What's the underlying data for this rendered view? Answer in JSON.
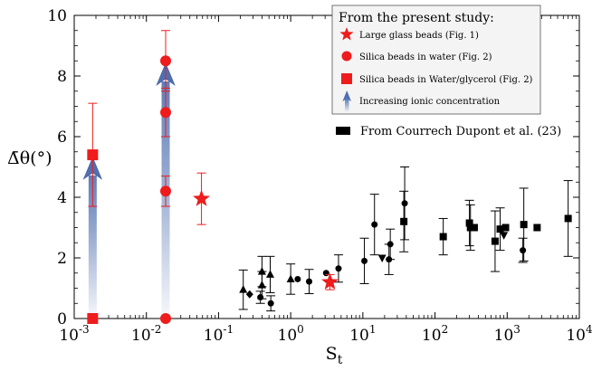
{
  "chart_data": {
    "type": "scatter",
    "xlabel": "S",
    "xlabel_sub": "t",
    "ylabel": "Δ̄θ(°)",
    "x_scale": "log",
    "xlim": [
      0.001,
      10000
    ],
    "ylim": [
      0,
      10
    ],
    "x_tick_labels": [
      {
        "base": "10",
        "exp": "-3"
      },
      {
        "base": "10",
        "exp": "-2"
      },
      {
        "base": "10",
        "exp": "-1"
      },
      {
        "base": "10",
        "exp": "0"
      },
      {
        "base": "10",
        "exp": "1"
      },
      {
        "base": "10",
        "exp": "2"
      },
      {
        "base": "10",
        "exp": "3"
      },
      {
        "base": "10",
        "exp": "4"
      }
    ],
    "y_ticks": [
      0,
      2,
      4,
      6,
      8,
      10
    ],
    "y_tick_labels": [
      "0",
      "2",
      "4",
      "6",
      "8",
      "10"
    ],
    "grid": false,
    "legend": {
      "placement": "top-right",
      "title": "From the present study:",
      "entries": [
        {
          "label": "Large glass beads (Fig. 1)",
          "marker": "star",
          "color": "#ee1c1c"
        },
        {
          "label": "Silica beads in water (Fig. 2)",
          "marker": "circle",
          "color": "#ee1c1c"
        },
        {
          "label": "Silica beads in Water/glycerol (Fig. 2)",
          "marker": "square",
          "color": "#ee1c1c"
        },
        {
          "label": "Increasing ionic concentration",
          "marker": "arrow",
          "color": "#4f6fb0"
        }
      ],
      "second_entry": {
        "label": "From Courrech Dupont et al. (23)",
        "marker": "square",
        "color": "#000000"
      }
    },
    "series": [
      {
        "name": "Large glass beads (Fig. 1)",
        "marker": "star",
        "color": "#ee1c1c",
        "points": [
          {
            "x": 0.058,
            "y": 3.95,
            "err": 0.85
          },
          {
            "x": 3.5,
            "y": 1.2,
            "err": 0.25
          }
        ]
      },
      {
        "name": "Silica beads in water (Fig. 2)",
        "marker": "circle",
        "color": "#ee1c1c",
        "points": [
          {
            "x": 0.0185,
            "y": 8.5,
            "err": 1.0
          },
          {
            "x": 0.0185,
            "y": 6.8,
            "err": 0.8
          },
          {
            "x": 0.0185,
            "y": 4.2,
            "err": 0.5
          },
          {
            "x": 0.0185,
            "y": 0,
            "err": 0
          }
        ]
      },
      {
        "name": "Silica beads in Water/glycerol (Fig. 2)",
        "marker": "square",
        "color": "#ee1c1c",
        "points": [
          {
            "x": 0.0018,
            "y": 5.4,
            "err": 1.7
          },
          {
            "x": 0.0018,
            "y": 0,
            "err": 0
          }
        ]
      },
      {
        "name": "Increasing ionic concentration",
        "marker": "arrow",
        "color": "#4f6fb0",
        "arrows": [
          {
            "x": 0.0018,
            "y_from": 0,
            "y_to": 4.9
          },
          {
            "x": 0.0185,
            "y_from": 0,
            "y_to": 8.0
          }
        ]
      },
      {
        "name": "From Courrech Dupont et al. (23)",
        "marker": "mixed",
        "color": "#000000",
        "points": [
          {
            "x": 0.22,
            "y": 0.95,
            "err": 0.65,
            "m": "tri"
          },
          {
            "x": 0.27,
            "y": 0.8,
            "err": 0,
            "m": "diamond"
          },
          {
            "x": 0.38,
            "y": 0.7,
            "err": 0.2,
            "m": "circle"
          },
          {
            "x": 0.4,
            "y": 1.1,
            "err": 0.45,
            "m": "tri"
          },
          {
            "x": 0.4,
            "y": 1.55,
            "err": 0.5,
            "m": "tri"
          },
          {
            "x": 0.52,
            "y": 1.45,
            "err": 0.6,
            "m": "tri"
          },
          {
            "x": 0.53,
            "y": 0.5,
            "err": 0.25,
            "m": "circle"
          },
          {
            "x": 1.0,
            "y": 1.3,
            "err": 0.5,
            "m": "tri"
          },
          {
            "x": 1.25,
            "y": 1.3,
            "err": 0,
            "m": "circle"
          },
          {
            "x": 1.8,
            "y": 1.22,
            "err": 0.4,
            "m": "circle"
          },
          {
            "x": 3.1,
            "y": 1.5,
            "err": 0,
            "m": "circle"
          },
          {
            "x": 4.6,
            "y": 1.65,
            "err": 0.45,
            "m": "circle"
          },
          {
            "x": 10.5,
            "y": 1.9,
            "err": 0.75,
            "m": "circle"
          },
          {
            "x": 14.5,
            "y": 3.1,
            "err": 1.0,
            "m": "circle"
          },
          {
            "x": 18.5,
            "y": 2.0,
            "err": 0,
            "m": "tri-down"
          },
          {
            "x": 23,
            "y": 1.95,
            "err": 0.5,
            "m": "circle"
          },
          {
            "x": 24,
            "y": 2.45,
            "err": 0.5,
            "m": "circle"
          },
          {
            "x": 37,
            "y": 3.2,
            "err": 1.0,
            "m": "square"
          },
          {
            "x": 38,
            "y": 3.8,
            "err": 1.2,
            "m": "circle"
          },
          {
            "x": 130,
            "y": 2.7,
            "err": 0.6,
            "m": "square"
          },
          {
            "x": 300,
            "y": 3.15,
            "err": 0.75,
            "m": "square"
          },
          {
            "x": 310,
            "y": 3.0,
            "err": 0.75,
            "m": "square"
          },
          {
            "x": 350,
            "y": 3.0,
            "err": 0,
            "m": "square"
          },
          {
            "x": 680,
            "y": 2.55,
            "err": 1.0,
            "m": "square"
          },
          {
            "x": 800,
            "y": 2.95,
            "err": 0.7,
            "m": "square"
          },
          {
            "x": 900,
            "y": 2.75,
            "err": 0,
            "m": "tri-down"
          },
          {
            "x": 950,
            "y": 3.0,
            "err": 0,
            "m": "square"
          },
          {
            "x": 1650,
            "y": 2.25,
            "err": 0.4,
            "m": "circle"
          },
          {
            "x": 1700,
            "y": 3.1,
            "err": 1.2,
            "m": "square"
          },
          {
            "x": 2600,
            "y": 3.0,
            "err": 0,
            "m": "square"
          },
          {
            "x": 7000,
            "y": 3.3,
            "err": 1.25,
            "m": "square"
          }
        ]
      }
    ]
  }
}
